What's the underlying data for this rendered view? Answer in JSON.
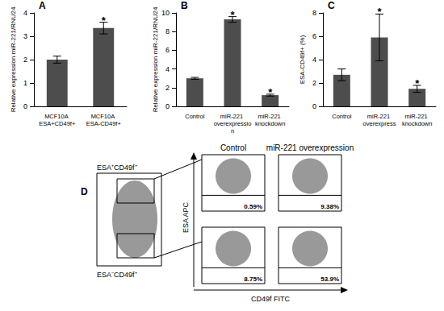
{
  "chart_data": [
    {
      "type": "bar",
      "title": "A",
      "y_label": "Relative expression miR-221/RNU24",
      "categories": [
        "MCF10A ESA+CD49f+",
        "MCF10A ESA-CD49f+"
      ],
      "values": [
        2.0,
        3.35
      ],
      "errors": [
        0.15,
        0.25
      ],
      "annotations": [
        {
          "category": "MCF10A ESA-CD49f+",
          "text": "*"
        }
      ],
      "color": "#4d4d4d",
      "ylim": [
        0,
        4
      ],
      "yticks": [
        0,
        1,
        2,
        3,
        4
      ],
      "grid": false
    },
    {
      "type": "bar",
      "title": "B",
      "y_label": "Relative expression miR-221/RNU24",
      "categories": [
        "Control",
        "miR-221 overexpression",
        "miR-221 knockdown"
      ],
      "values": [
        3.0,
        9.3,
        1.2
      ],
      "errors": [
        0.1,
        0.3,
        0.1
      ],
      "annotations": [
        {
          "category": "miR-221 overexpression",
          "text": "*"
        },
        {
          "category": "miR-221 knockdown",
          "text": "*"
        }
      ],
      "color": "#4d4d4d",
      "ylim": [
        0,
        10
      ],
      "yticks": [
        0,
        2,
        4,
        6,
        8,
        10
      ],
      "grid": false
    },
    {
      "type": "bar",
      "title": "C",
      "y_label": "ESA-CD49f+ (%)",
      "categories": [
        "Control",
        "miR-221 overexpress",
        "miR-221 knockdown"
      ],
      "values": [
        2.7,
        5.9,
        1.5
      ],
      "errors": [
        0.5,
        2.0,
        0.3
      ],
      "annotations": [
        {
          "category": "miR-221 overexpress",
          "text": "*"
        },
        {
          "category": "miR-221 knockdown",
          "text": "*"
        }
      ],
      "color": "#4d4d4d",
      "ylim": [
        0,
        8
      ],
      "yticks": [
        0,
        2,
        4,
        6,
        8
      ],
      "grid": false
    }
  ],
  "panel_d": {
    "title": "D",
    "columns": [
      "Control",
      "miR-221 overexpression"
    ],
    "rows": [
      {
        "label": "ESA⁺CD49f⁺",
        "percents": [
          "0.59%",
          "9.38%"
        ]
      },
      {
        "label": "ESA⁻CD49f⁺",
        "percents": [
          "8.75%",
          "53.9%"
        ]
      }
    ],
    "x_label": "CD49f FITC",
    "y_label": "ESA APC"
  }
}
